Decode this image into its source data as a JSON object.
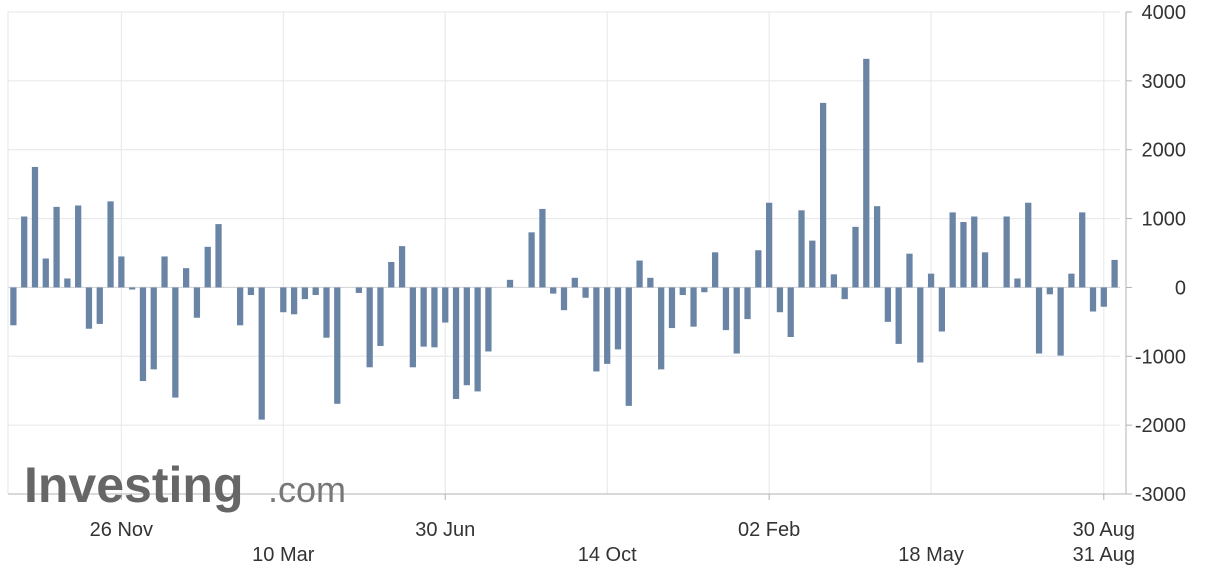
{
  "chart_data": {
    "type": "bar",
    "title": "",
    "xlabel": "",
    "ylabel": "",
    "ylim": [
      -3000,
      4000
    ],
    "y_ticks": [
      4000,
      3000,
      2000,
      1000,
      0,
      -1000,
      -2000,
      -3000
    ],
    "y_tick_labels": [
      "4000",
      "3000",
      "2000",
      "1000",
      "0",
      "-1000",
      "-2000",
      "-3000"
    ],
    "grid": true,
    "bar_color": "#6a84a6",
    "x_tick_labels_row1": [
      {
        "label": "26 Nov",
        "index": 10
      },
      {
        "label": "30 Jun",
        "index": 40
      },
      {
        "label": "02 Feb",
        "index": 70
      },
      {
        "label": "30 Aug",
        "index": 101
      }
    ],
    "x_tick_labels_row2": [
      {
        "label": "10 Mar",
        "index": 25
      },
      {
        "label": "14 Oct",
        "index": 55
      },
      {
        "label": "18 May",
        "index": 85
      },
      {
        "label": "31 Aug",
        "index": 101
      }
    ],
    "values": [
      -550,
      1030,
      1750,
      420,
      1170,
      130,
      1190,
      -600,
      -530,
      1250,
      450,
      -30,
      -1360,
      -1190,
      450,
      -1600,
      280,
      -440,
      590,
      920,
      0,
      -550,
      -110,
      -1920,
      0,
      -360,
      -390,
      -170,
      -110,
      -730,
      -1690,
      0,
      -80,
      -1160,
      -850,
      370,
      600,
      -1160,
      -860,
      -870,
      -510,
      -1620,
      -1420,
      -1510,
      -930,
      0,
      110,
      0,
      800,
      1140,
      -90,
      -330,
      140,
      -150,
      -1220,
      -1110,
      -900,
      -1720,
      390,
      140,
      -1190,
      -590,
      -110,
      -570,
      -70,
      510,
      -620,
      -960,
      -460,
      540,
      1230,
      -360,
      -720,
      1120,
      680,
      2680,
      190,
      -170,
      880,
      3320,
      1180,
      -500,
      -820,
      490,
      -1090,
      200,
      -640,
      1090,
      950,
      1030,
      510,
      0,
      1030,
      130,
      1230,
      -960,
      -100,
      -990,
      200,
      1090,
      -350,
      -280,
      400
    ],
    "watermark": "Investing.com"
  }
}
